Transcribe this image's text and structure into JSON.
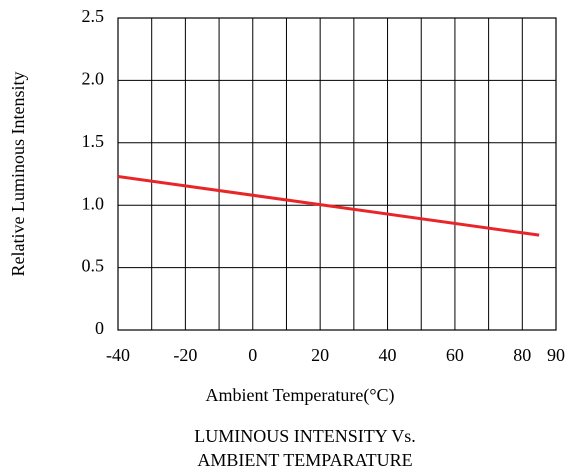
{
  "chart_data": {
    "type": "line",
    "title": [
      "LUMINOUS INTENSITY Vs.",
      "AMBIENT TEMPARATURE"
    ],
    "x_label": "Ambient Temperature(°C)",
    "y_label": "Relative Luminous Intensity",
    "series": [
      {
        "name": "Relative Luminous Intensity",
        "color": "#e8262a",
        "x": [
          -40,
          85
        ],
        "values": [
          1.23,
          0.76
        ]
      }
    ],
    "xlim": [
      -40,
      90
    ],
    "xticks": [
      -40,
      -20,
      0,
      20,
      40,
      60,
      80,
      90
    ],
    "x_grid_step": 10,
    "ylim": [
      0,
      2.5
    ],
    "yticks": [
      0,
      0.5,
      {
        "value": 1,
        "label": "1.0"
      },
      1.5,
      {
        "value": 2,
        "label": "2.0"
      },
      2.5
    ],
    "grid": true
  }
}
